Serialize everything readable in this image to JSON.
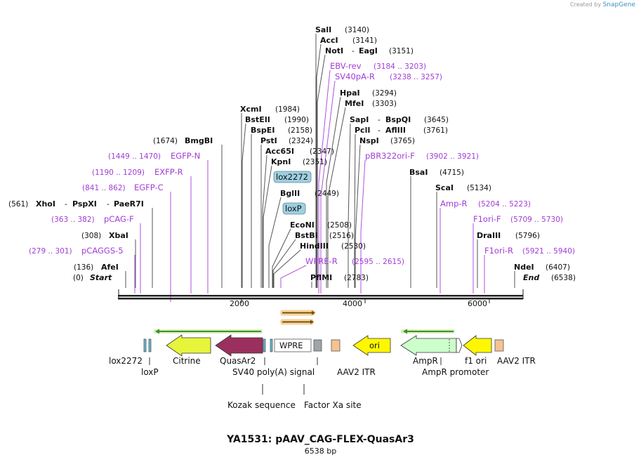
{
  "attribution": {
    "prefix": "Created by",
    "brand": "SnapGene"
  },
  "title": "YA1531: pAAV_CAG-FLEX-QuasAr3",
  "subtitle": "6538 bp",
  "ruler": {
    "ticks": [
      "2000",
      "4000",
      "6000"
    ]
  },
  "enzymes_right": [
    {
      "id": "sali",
      "parts": [
        "SalI"
      ],
      "pos": "(3140)"
    },
    {
      "id": "acci",
      "parts": [
        "AccI"
      ],
      "pos": "(3141)"
    },
    {
      "id": "noti",
      "parts": [
        "NotI",
        "-",
        "EagI"
      ],
      "pos": "(3151)"
    },
    {
      "id": "hpai",
      "parts": [
        "HpaI"
      ],
      "pos": "(3294)"
    },
    {
      "id": "mfei",
      "parts": [
        "MfeI"
      ],
      "pos": "(3303)"
    },
    {
      "id": "sapi",
      "parts": [
        "SapI",
        "-",
        "BspQI"
      ],
      "pos": "(3645)"
    },
    {
      "id": "pcli",
      "parts": [
        "PclI",
        "-",
        "AflIII"
      ],
      "pos": "(3761)"
    },
    {
      "id": "nspi",
      "parts": [
        "NspI"
      ],
      "pos": "(3765)"
    },
    {
      "id": "bsai",
      "parts": [
        "BsaI"
      ],
      "pos": "(4715)"
    },
    {
      "id": "scai",
      "parts": [
        "ScaI"
      ],
      "pos": "(5134)"
    },
    {
      "id": "draiii",
      "parts": [
        "DraIII"
      ],
      "pos": "(5796)"
    },
    {
      "id": "ndei",
      "parts": [
        "NdeI"
      ],
      "pos": "(6407)"
    },
    {
      "id": "xcmi",
      "parts": [
        "XcmI"
      ],
      "pos": "(1984)"
    },
    {
      "id": "bsteii",
      "parts": [
        "BstEII"
      ],
      "pos": "(1990)"
    },
    {
      "id": "bspei",
      "parts": [
        "BspEI"
      ],
      "pos": "(2158)"
    },
    {
      "id": "psti",
      "parts": [
        "PstI"
      ],
      "pos": "(2324)"
    },
    {
      "id": "acc65i",
      "parts": [
        "Acc65I"
      ],
      "pos": "(2347)"
    },
    {
      "id": "kpni",
      "parts": [
        "KpnI"
      ],
      "pos": "(2351)"
    },
    {
      "id": "bglii",
      "parts": [
        "BglII"
      ],
      "pos": "(2449)"
    },
    {
      "id": "econi",
      "parts": [
        "EcoNI"
      ],
      "pos": "(2508)"
    },
    {
      "id": "bstbi",
      "parts": [
        "BstBI"
      ],
      "pos": "(2516)"
    },
    {
      "id": "hindiii",
      "parts": [
        "HindIII"
      ],
      "pos": "(2530)"
    },
    {
      "id": "pflmi",
      "parts": [
        "PflMI"
      ],
      "pos": "(2783)"
    }
  ],
  "enzymes_left": [
    {
      "id": "bmgbi",
      "parts": [
        "BmgBI"
      ],
      "pos": "(1674)"
    },
    {
      "id": "xhoi",
      "parts": [
        "XhoI",
        "-",
        "PspXI",
        "-",
        "PaeR7I"
      ],
      "pos": "(561)"
    },
    {
      "id": "xbai",
      "parts": [
        "XbaI"
      ],
      "pos": "(308)"
    },
    {
      "id": "afei",
      "parts": [
        "AfeI"
      ],
      "pos": "(136)"
    }
  ],
  "primers_right": [
    {
      "id": "ebv-rev",
      "name": "EBV-rev",
      "range": "(3184 .. 3203)"
    },
    {
      "id": "sv40pa-r",
      "name": "SV40pA-R",
      "range": "(3238 .. 3257)"
    },
    {
      "id": "pbr322ori-f",
      "name": "pBR322ori-F",
      "range": "(3902 .. 3921)"
    },
    {
      "id": "amp-r",
      "name": "Amp-R",
      "range": "(5204 .. 5223)"
    },
    {
      "id": "f1ori-f",
      "name": "F1ori-F",
      "range": "(5709 .. 5730)"
    },
    {
      "id": "f1ori-r",
      "name": "F1ori-R",
      "range": "(5921 .. 5940)"
    },
    {
      "id": "wpre-r",
      "name": "WPRE-R",
      "range": "(2595 .. 2615)"
    }
  ],
  "primers_left": [
    {
      "id": "egfp-n",
      "name": "EGFP-N",
      "range": "(1449 .. 1470)"
    },
    {
      "id": "exfp-r",
      "name": "EXFP-R",
      "range": "(1190 .. 1209)"
    },
    {
      "id": "egfp-c",
      "name": "EGFP-C",
      "range": "(841 .. 862)"
    },
    {
      "id": "pcag-f",
      "name": "pCAG-F",
      "range": "(363 .. 382)"
    },
    {
      "id": "pcaggs-5",
      "name": "pCAGGS-5",
      "range": "(279 .. 301)"
    }
  ],
  "ends": {
    "start_label": "Start",
    "start_pos": "(0)",
    "end_label": "End",
    "end_pos": "(6538)"
  },
  "boxed_features": [
    {
      "id": "lox2272",
      "label": "lox2272"
    },
    {
      "id": "loxp",
      "label": "loxP"
    }
  ],
  "feature_labels": [
    {
      "id": "lox2272",
      "label": "lox2272"
    },
    {
      "id": "loxp",
      "label": "loxP"
    },
    {
      "id": "citrine",
      "label": "Citrine"
    },
    {
      "id": "quasar2",
      "label": "QuasAr2"
    },
    {
      "id": "sv40-polya",
      "label": "SV40 poly(A) signal"
    },
    {
      "id": "aav2-itr-1",
      "label": "AAV2 ITR"
    },
    {
      "id": "ampr",
      "label": "AmpR"
    },
    {
      "id": "ampr-promoter",
      "label": "AmpR promoter"
    },
    {
      "id": "f1-ori",
      "label": "f1 ori"
    },
    {
      "id": "aav2-itr-2",
      "label": "AAV2 ITR"
    },
    {
      "id": "kozak",
      "label": "Kozak sequence"
    },
    {
      "id": "factor-xa",
      "label": "Factor Xa site"
    }
  ],
  "inline_labels": [
    {
      "id": "wpre",
      "label": "WPRE"
    },
    {
      "id": "ori",
      "label": "ori"
    }
  ],
  "colors": {
    "enzyme": "#111111",
    "primer": "#a23cd6",
    "primer_line": "#b04fe0",
    "citrine": "#e6f53b",
    "quasar2": "#9b2f5e",
    "ori": "#fff700",
    "ampr": "#ccffcc",
    "itr": "#f5c391",
    "polya": "#a0a4a8",
    "lox_box": "#9fd0e0",
    "orf_arrow": "#49a23a",
    "small_arrow": "#e08a00"
  }
}
